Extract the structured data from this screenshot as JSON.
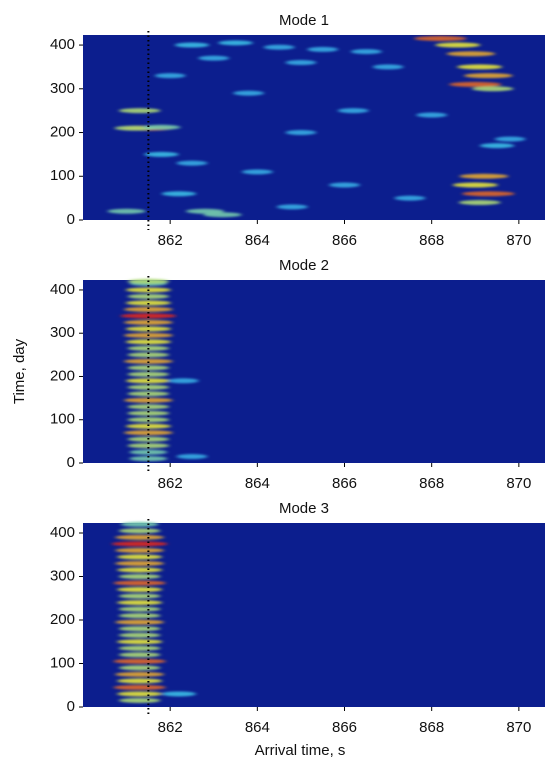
{
  "chart_data": [
    {
      "type": "heatmap",
      "title": "Mode 1",
      "background": "#0c1e8e",
      "xlim": [
        860,
        870.6
      ],
      "xticks": [
        862,
        864,
        866,
        868,
        870
      ],
      "ylim": [
        0,
        423
      ],
      "yticks": [
        0,
        100,
        200,
        300,
        400
      ],
      "vline": 861.5,
      "x": [
        861.5,
        861.2,
        861.8,
        861.3,
        862.5,
        863.5,
        864.5,
        865.5,
        866.5,
        863,
        865,
        867,
        868.2,
        868.6,
        868.9,
        869.1,
        869.3,
        869.0,
        869.4,
        869.2,
        869.0,
        869.3,
        869.1,
        869.5,
        869.8,
        862.8,
        863.2,
        861.8,
        862.5,
        864,
        866,
        867.5,
        861,
        863.8,
        862,
        866.2,
        865,
        868,
        862.2,
        864.8
      ],
      "y": [
        210,
        210,
        212,
        250,
        400,
        405,
        395,
        390,
        385,
        370,
        360,
        350,
        415,
        400,
        380,
        350,
        330,
        310,
        300,
        100,
        80,
        60,
        40,
        170,
        185,
        20,
        12,
        150,
        130,
        110,
        80,
        50,
        20,
        290,
        330,
        250,
        200,
        240,
        60,
        30
      ],
      "values": [
        0.9,
        0.6,
        0.5,
        0.6,
        0.4,
        0.4,
        0.3,
        0.3,
        0.3,
        0.3,
        0.3,
        0.3,
        0.9,
        0.7,
        0.8,
        0.7,
        0.8,
        0.9,
        0.6,
        0.8,
        0.7,
        0.9,
        0.6,
        0.4,
        0.3,
        0.5,
        0.5,
        0.4,
        0.3,
        0.3,
        0.3,
        0.3,
        0.5,
        0.3,
        0.3,
        0.3,
        0.3,
        0.3,
        0.4,
        0.3
      ]
    },
    {
      "type": "heatmap",
      "title": "Mode 2",
      "ylabel": "Time, day",
      "background": "#0c1e8e",
      "xlim": [
        860,
        870.6
      ],
      "xticks": [
        862,
        864,
        866,
        868,
        870
      ],
      "ylim": [
        0,
        423
      ],
      "yticks": [
        0,
        100,
        200,
        300,
        400
      ],
      "vline": 861.5,
      "x": [
        861.5,
        861.5,
        861.5,
        861.5,
        861.5,
        861.5,
        861.5,
        861.5,
        861.5,
        861.5,
        861.5,
        861.5,
        861.5,
        861.5,
        861.5,
        861.5,
        861.5,
        861.5,
        861.5,
        861.5,
        861.5,
        861.5,
        861.5,
        861.5,
        861.5,
        861.5,
        861.5,
        861.5,
        861.5,
        862.3,
        862.5
      ],
      "y": [
        10,
        25,
        40,
        55,
        70,
        85,
        100,
        115,
        130,
        145,
        160,
        175,
        190,
        205,
        220,
        235,
        250,
        265,
        280,
        295,
        310,
        325,
        340,
        355,
        370,
        385,
        400,
        415,
        420,
        190,
        15
      ],
      "values": [
        0.5,
        0.5,
        0.6,
        0.6,
        0.8,
        0.7,
        0.6,
        0.6,
        0.6,
        0.8,
        0.6,
        0.6,
        0.7,
        0.6,
        0.6,
        0.8,
        0.6,
        0.6,
        0.7,
        0.8,
        0.7,
        0.8,
        1.0,
        0.8,
        0.7,
        0.6,
        0.7,
        0.5,
        0.6,
        0.3,
        0.3
      ]
    },
    {
      "type": "heatmap",
      "title": "Mode 3",
      "xlabel": "Arrival time, s",
      "background": "#0c1e8e",
      "xlim": [
        860,
        870.6
      ],
      "xticks": [
        862,
        864,
        866,
        868,
        870
      ],
      "ylim": [
        0,
        423
      ],
      "yticks": [
        0,
        100,
        200,
        300,
        400
      ],
      "vline": 861.5,
      "x": [
        861.3,
        861.3,
        861.3,
        861.3,
        861.3,
        861.3,
        861.3,
        861.3,
        861.3,
        861.3,
        861.3,
        861.3,
        861.3,
        861.3,
        861.3,
        861.3,
        861.3,
        861.3,
        861.3,
        861.3,
        861.3,
        861.3,
        861.3,
        861.3,
        861.3,
        861.3,
        861.3,
        861.3,
        862.2
      ],
      "y": [
        15,
        30,
        45,
        60,
        75,
        90,
        105,
        120,
        135,
        150,
        165,
        180,
        195,
        210,
        225,
        240,
        255,
        270,
        285,
        300,
        315,
        330,
        345,
        360,
        375,
        390,
        405,
        420,
        30
      ],
      "values": [
        0.6,
        0.7,
        0.9,
        0.7,
        0.8,
        0.6,
        0.9,
        0.6,
        0.6,
        0.7,
        0.6,
        0.6,
        0.8,
        0.6,
        0.6,
        0.7,
        0.6,
        0.7,
        0.9,
        0.6,
        0.7,
        0.8,
        0.7,
        0.8,
        1.0,
        0.8,
        0.6,
        0.5,
        0.4
      ]
    }
  ]
}
